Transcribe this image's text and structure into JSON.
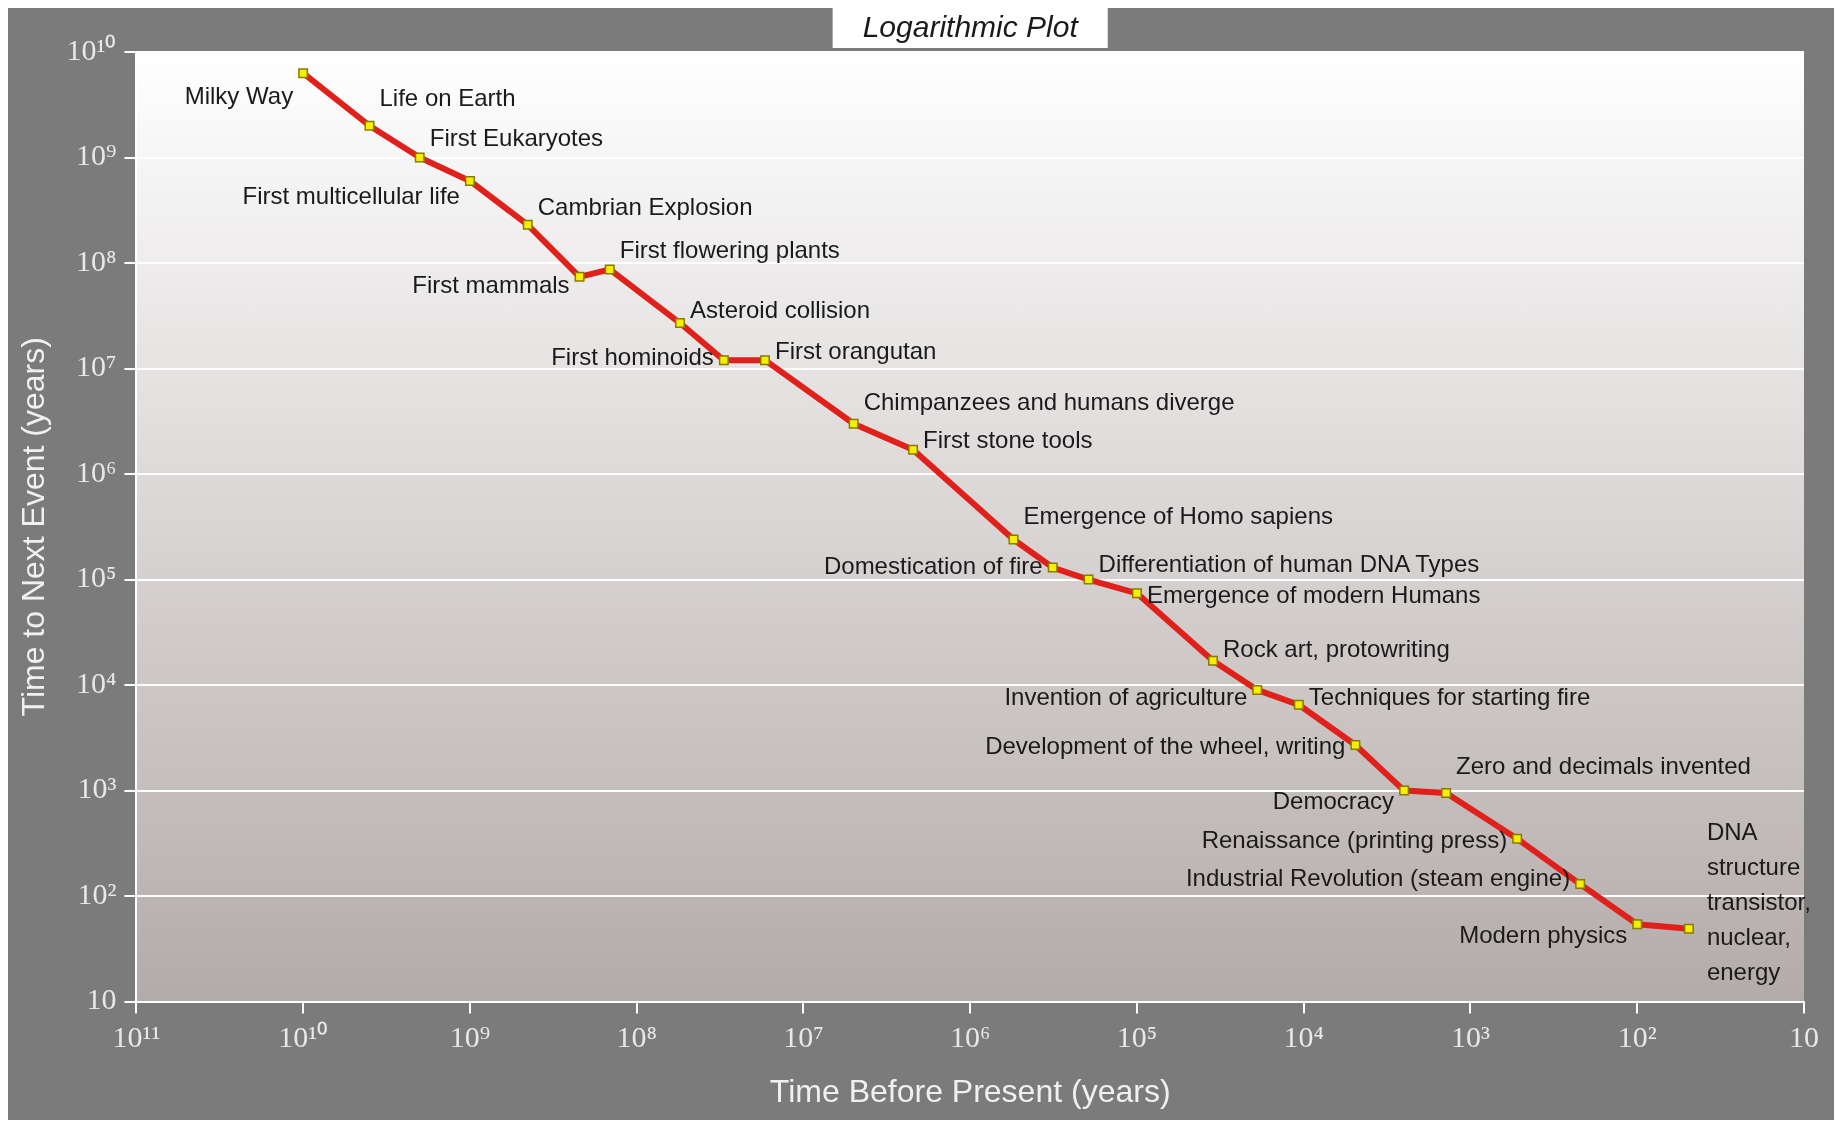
{
  "chart_data": {
    "type": "line",
    "title": "Logarithmic Plot",
    "xlabel": "Time Before Present (years)",
    "ylabel": "Time to Next Event (years)",
    "x": [
      10000000000.0,
      4000000000.0,
      2000000000.0,
      1000000000.0,
      450000000.0,
      220000000.0,
      145000000.0,
      55000000.0,
      30000000.0,
      17000000.0,
      5000000.0,
      2200000.0,
      550000.0,
      320000.0,
      195000.0,
      100000.0,
      35000.0,
      19000.0,
      10700.0,
      4900.0,
      2500.0,
      1400.0,
      525,
      220,
      100,
      49
    ],
    "series": [
      {
        "color": "#e0201a",
        "values": [
          6300000000.0,
          2000000000.0,
          1000000000.0,
          600000000.0,
          230000000.0,
          74000000.0,
          87000000.0,
          27000000.0,
          12000000.0,
          12000000.0,
          3000000.0,
          1700000.0,
          240000.0,
          130000.0,
          100000.0,
          74000.0,
          17000.0,
          9000.0,
          6500.0,
          2700.0,
          1000.0,
          950,
          350,
          130,
          54,
          49
        ]
      }
    ],
    "log": "xy",
    "xlim": [
      100000000000.0,
      10
    ],
    "ylim": [
      10,
      10000000000.0
    ],
    "xticks": [
      {
        "value": 100000000000.0,
        "label": "10¹¹"
      },
      {
        "value": 10000000000.0,
        "label": "10¹⁰"
      },
      {
        "value": 1000000000.0,
        "label": "10⁹"
      },
      {
        "value": 100000000.0,
        "label": "10⁸"
      },
      {
        "value": 10000000.0,
        "label": "10⁷"
      },
      {
        "value": 1000000.0,
        "label": "10⁶"
      },
      {
        "value": 100000.0,
        "label": "10⁵"
      },
      {
        "value": 10000.0,
        "label": "10⁴"
      },
      {
        "value": 1000.0,
        "label": "10³"
      },
      {
        "value": 100,
        "label": "10²"
      },
      10
    ],
    "yticks": [
      10,
      {
        "value": 100,
        "label": "10²"
      },
      {
        "value": 1000.0,
        "label": "10³"
      },
      {
        "value": 10000.0,
        "label": "10⁴"
      },
      {
        "value": 100000.0,
        "label": "10⁵"
      },
      {
        "value": 1000000.0,
        "label": "10⁶"
      },
      {
        "value": 10000000.0,
        "label": "10⁷"
      },
      {
        "value": 100000000.0,
        "label": "10⁸"
      },
      {
        "value": 1000000000.0,
        "label": "10⁹"
      },
      {
        "value": 10000000000.0,
        "label": "10¹⁰"
      }
    ],
    "grid": "y",
    "marker": "square",
    "line_style": "solid",
    "legend": false,
    "annotations": [
      {
        "text": "Milky Way",
        "x": 10000000000.0,
        "y": 6300000000.0
      },
      {
        "text": "Life on Earth",
        "x": 4000000000.0,
        "y": 2000000000.0
      },
      {
        "text": "First Eukaryotes",
        "x": 2000000000.0,
        "y": 1000000000.0
      },
      {
        "text": "First multicellular life",
        "x": 1000000000.0,
        "y": 600000000.0
      },
      {
        "text": "Cambrian Explosion",
        "x": 450000000.0,
        "y": 230000000.0
      },
      {
        "text": "First mammals",
        "x": 220000000.0,
        "y": 74000000.0
      },
      {
        "text": "First flowering plants",
        "x": 145000000.0,
        "y": 87000000.0
      },
      {
        "text": "Asteroid collision",
        "x": 55000000.0,
        "y": 27000000.0
      },
      {
        "text": "First hominoids",
        "x": 30000000.0,
        "y": 12000000.0
      },
      {
        "text": "First orangutan",
        "x": 17000000.0,
        "y": 12000000.0
      },
      {
        "text": "Chimpanzees and humans diverge",
        "x": 5000000.0,
        "y": 3000000.0
      },
      {
        "text": "First stone tools",
        "x": 2200000.0,
        "y": 1700000.0
      },
      {
        "text": "Emergence of Homo sapiens",
        "x": 550000.0,
        "y": 240000.0
      },
      {
        "text": "Domestication of fire",
        "x": 320000.0,
        "y": 130000.0
      },
      {
        "text": "Differentiation of human DNA Types",
        "x": 195000.0,
        "y": 100000.0
      },
      {
        "text": "Emergence of modern Humans",
        "x": 100000.0,
        "y": 74000.0
      },
      {
        "text": "Rock art, protowriting",
        "x": 35000.0,
        "y": 17000.0
      },
      {
        "text": "Invention of agriculture",
        "x": 19000.0,
        "y": 9000.0
      },
      {
        "text": "Techniques for starting fire",
        "x": 10700.0,
        "y": 6500.0
      },
      {
        "text": "Development of the wheel, writing",
        "x": 4900.0,
        "y": 2700.0
      },
      {
        "text": "Democracy",
        "x": 2500.0,
        "y": 1000.0
      },
      {
        "text": "Zero and decimals invented",
        "x": 1400.0,
        "y": 950
      },
      {
        "text": "Renaissance (printing press)",
        "x": 525,
        "y": 350
      },
      {
        "text": "Industrial Revolution (steam engine)",
        "x": 220,
        "y": 130
      },
      {
        "text": "Modern physics",
        "x": 100,
        "y": 54
      },
      {
        "text": "DNA structure transistor, nuclear, energy",
        "x": 49,
        "y": 49
      }
    ]
  }
}
